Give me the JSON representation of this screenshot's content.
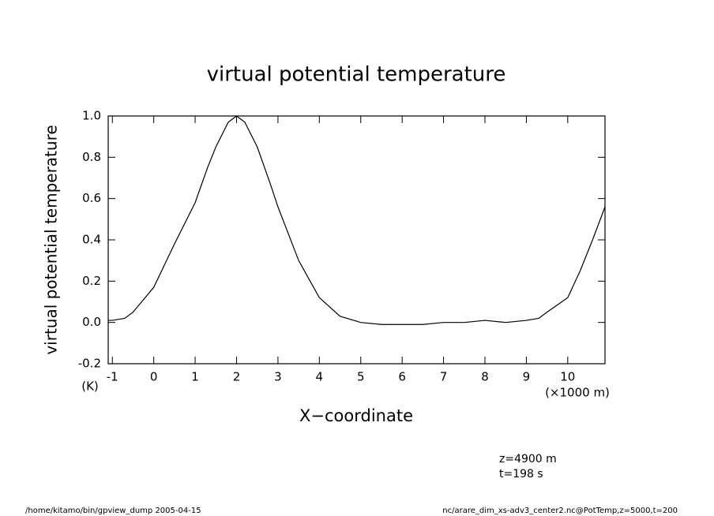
{
  "chart_data": {
    "type": "line",
    "title": "virtual potential temperature",
    "ylabel": "virtual potential temperature",
    "yunit": "(K)",
    "xlabel": "X−coordinate",
    "xunit": "(×1000 m)",
    "annotations": [
      "z=4900 m",
      "t=198 s"
    ],
    "footer_left": "/home/kitamo/bin/gpview_dump  2005-04-15",
    "footer_right": "nc/arare_dim_xs-adv3_center2.nc@PotTemp,z=5000,t=200",
    "x": [
      -1.1,
      -1,
      -0.7,
      -0.5,
      0,
      0.5,
      1,
      1.3,
      1.5,
      1.8,
      2,
      2.2,
      2.5,
      2.8,
      3,
      3.5,
      4,
      4.5,
      5,
      5.5,
      6,
      6.5,
      7,
      7.5,
      8,
      8.5,
      9,
      9.3,
      9.5,
      10,
      10.3,
      10.6,
      10.9
    ],
    "series": [
      {
        "color": "#000000",
        "values": [
          0.01,
          0.01,
          0.02,
          0.05,
          0.17,
          0.38,
          0.58,
          0.75,
          0.85,
          0.97,
          1.0,
          0.97,
          0.85,
          0.68,
          0.56,
          0.3,
          0.12,
          0.03,
          0.0,
          -0.01,
          -0.01,
          -0.01,
          0.0,
          0.0,
          0.01,
          0.0,
          0.01,
          0.02,
          0.05,
          0.12,
          0.25,
          0.4,
          0.56
        ]
      }
    ],
    "xlim": [
      -1.1,
      10.9
    ],
    "xticks": [
      -1,
      0,
      1,
      2,
      3,
      4,
      5,
      6,
      7,
      8,
      9,
      10
    ],
    "ylim": [
      -0.2,
      1.0
    ],
    "yticks": [
      -0.2,
      {
        "value": 0,
        "label": "0.0"
      },
      0.2,
      0.4,
      0.6,
      0.8,
      {
        "value": 1,
        "label": "1.0"
      }
    ]
  }
}
